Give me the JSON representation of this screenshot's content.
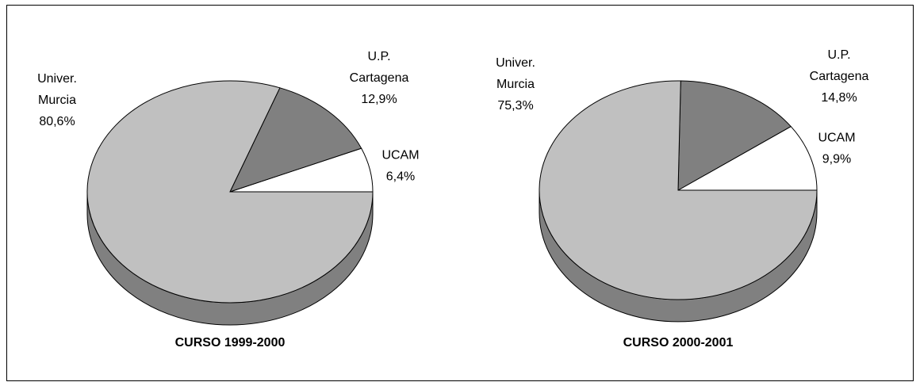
{
  "chart_data": [
    {
      "type": "pie",
      "title": "CURSO 1999-2000",
      "categories": [
        "UCAM",
        "U.P. Cartagena",
        "Univer. Murcia"
      ],
      "values": [
        6.4,
        12.9,
        80.6
      ],
      "value_labels": [
        "6,4%",
        "12,9%",
        "80,6%"
      ],
      "colors": [
        "#ffffff",
        "#808080",
        "#c0c0c0"
      ]
    },
    {
      "type": "pie",
      "title": "CURSO 2000-2001",
      "categories": [
        "UCAM",
        "U.P. Cartagena",
        "Univer. Murcia"
      ],
      "values": [
        9.9,
        14.8,
        75.3
      ],
      "value_labels": [
        "9,9%",
        "14,8%",
        "75,3%"
      ],
      "colors": [
        "#ffffff",
        "#808080",
        "#c0c0c0"
      ]
    }
  ]
}
